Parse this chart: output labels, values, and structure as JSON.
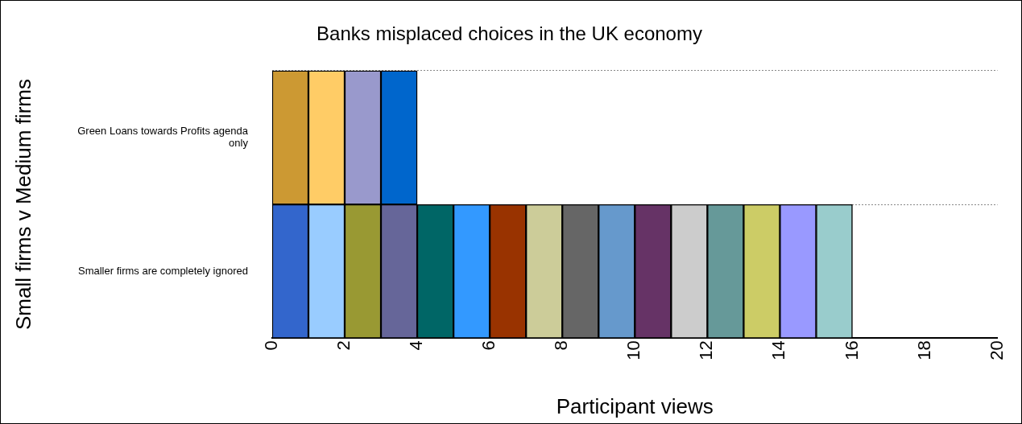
{
  "chart_data": {
    "type": "bar",
    "orientation": "horizontal",
    "stacked": true,
    "title": "Banks misplaced choices in the UK economy",
    "xlabel": "Participant views",
    "ylabel": "Small firms v Medium firms",
    "categories": [
      "Green Loans towards Profits agenda only",
      "Smaller firms are completely ignored"
    ],
    "series": [
      {
        "colors": [
          "#cc9933",
          "#3366cc"
        ],
        "values": [
          1,
          1
        ]
      },
      {
        "colors": [
          "#ffcc66",
          "#99ccff"
        ],
        "values": [
          1,
          1
        ]
      },
      {
        "colors": [
          "#9999cc",
          "#999933"
        ],
        "values": [
          1,
          1
        ]
      },
      {
        "colors": [
          "#0066cc",
          "#666699"
        ],
        "values": [
          1,
          1
        ]
      },
      {
        "color": "#006666",
        "values": [
          null,
          1
        ]
      },
      {
        "color": "#3399ff",
        "values": [
          null,
          1
        ]
      },
      {
        "color": "#993300",
        "values": [
          null,
          1
        ]
      },
      {
        "color": "#cccc99",
        "values": [
          null,
          1
        ]
      },
      {
        "color": "#666666",
        "values": [
          null,
          1
        ]
      },
      {
        "color": "#6699cc",
        "values": [
          null,
          1
        ]
      },
      {
        "color": "#663366",
        "values": [
          null,
          1
        ]
      },
      {
        "color": "#cccccc",
        "values": [
          null,
          1
        ]
      },
      {
        "color": "#669999",
        "values": [
          null,
          1
        ]
      },
      {
        "color": "#cccc66",
        "values": [
          null,
          1
        ]
      },
      {
        "color": "#9999ff",
        "values": [
          null,
          1
        ]
      },
      {
        "color": "#99cccc",
        "values": [
          null,
          1
        ]
      }
    ],
    "xlim": [
      0,
      20
    ],
    "xticks": [
      0,
      2,
      4,
      6,
      8,
      10,
      12,
      14,
      16,
      18,
      20
    ],
    "grid": "y",
    "legend": false
  }
}
